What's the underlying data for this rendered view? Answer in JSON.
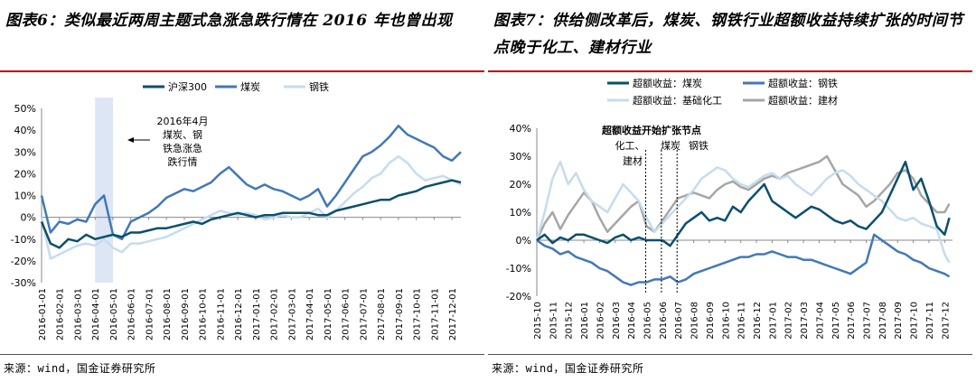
{
  "left": {
    "title": "图表6：类似最近两周主题式急涨急跌行情在 2016 年也曾出现",
    "source": "来源：wind，国金证券研究所",
    "legend": [
      "沪深300",
      "煤炭",
      "钢铁"
    ],
    "annotation_lines": [
      "2016年4月",
      "煤炭、钢",
      "铁急涨急",
      "跌行情"
    ],
    "colors": {
      "hs300": "#0b4f6c",
      "coal": "#4178b8",
      "steel": "#c6dcee",
      "shade": "#dce6f5",
      "title_rule": "#c00000"
    }
  },
  "right": {
    "title": "图表7：供给侧改革后，煤炭、钢铁行业超额收益持续扩张的时间节点晚于化工、建材行业",
    "source": "来源：wind，国金证券研究所",
    "legend": [
      "超额收益：煤炭",
      "超额收益：钢铁",
      "超额收益：基础化工",
      "超额收益：建材"
    ],
    "annotation_title": "超额收益开始扩张节点",
    "annotation_labels": [
      "化工、",
      "建材",
      "煤炭",
      "钢铁"
    ],
    "colors": {
      "coal": "#0b4f6c",
      "steel": "#4178b8",
      "chem": "#c6dcee",
      "build": "#a6a6a6"
    }
  },
  "chart_data": [
    {
      "type": "line",
      "xlabel": "",
      "ylabel": "",
      "ylim": [
        -0.3,
        0.5
      ],
      "yticks": [
        "50%",
        "40%",
        "30%",
        "20%",
        "10%",
        "0%",
        "-10%",
        "-20%",
        "-30%"
      ],
      "x_tick_labels": [
        "2016-01-01",
        "2016-02-01",
        "2016-03-01",
        "2016-04-01",
        "2016-05-01",
        "2016-06-01",
        "2016-07-01",
        "2016-08-01",
        "2016-09-01",
        "2016-10-01",
        "2016-11-01",
        "2016-12-01",
        "2017-01-01",
        "2017-02-01",
        "2017-03-01",
        "2017-04-01",
        "2017-05-01",
        "2017-06-01",
        "2017-07-01",
        "2017-08-01",
        "2017-09-01",
        "2017-10-01",
        "2017-11-01",
        "2017-12-01"
      ],
      "legend_position": "top-center",
      "shaded_region": [
        "2016-04-01",
        "2016-05-01"
      ],
      "series": [
        {
          "name": "沪深300",
          "x": [
            0,
            0.5,
            1,
            1.5,
            2,
            2.5,
            3,
            3.5,
            4,
            4.5,
            5,
            5.5,
            6,
            6.5,
            7,
            7.5,
            8,
            8.5,
            9,
            9.5,
            10,
            10.5,
            11,
            11.5,
            12,
            12.5,
            13,
            13.5,
            14,
            14.5,
            15,
            15.5,
            16,
            16.5,
            17,
            17.5,
            18,
            18.5,
            19,
            19.5,
            20,
            20.5,
            21,
            21.5,
            22,
            22.5,
            23,
            23.5
          ],
          "values": [
            -0.02,
            -0.12,
            -0.14,
            -0.1,
            -0.11,
            -0.08,
            -0.1,
            -0.09,
            -0.08,
            -0.09,
            -0.07,
            -0.07,
            -0.06,
            -0.05,
            -0.05,
            -0.04,
            -0.03,
            -0.02,
            -0.03,
            -0.01,
            0.0,
            0.01,
            0.02,
            0.01,
            0.0,
            0.01,
            0.01,
            0.02,
            0.02,
            0.02,
            0.02,
            0.01,
            0.01,
            0.03,
            0.04,
            0.05,
            0.06,
            0.07,
            0.08,
            0.08,
            0.1,
            0.11,
            0.12,
            0.14,
            0.15,
            0.16,
            0.17,
            0.16
          ]
        },
        {
          "name": "煤炭",
          "x": [
            0,
            0.5,
            1,
            1.5,
            2,
            2.5,
            3,
            3.5,
            4,
            4.5,
            5,
            5.5,
            6,
            6.5,
            7,
            7.5,
            8,
            8.5,
            9,
            9.5,
            10,
            10.5,
            11,
            11.5,
            12,
            12.5,
            13,
            13.5,
            14,
            14.5,
            15,
            15.5,
            16,
            16.5,
            17,
            17.5,
            18,
            18.5,
            19,
            19.5,
            20,
            20.5,
            21,
            21.5,
            22,
            22.5,
            23,
            23.5
          ],
          "values": [
            0.1,
            -0.07,
            -0.02,
            -0.03,
            -0.01,
            -0.02,
            0.06,
            0.1,
            -0.08,
            -0.1,
            -0.02,
            0.0,
            0.02,
            0.05,
            0.09,
            0.11,
            0.13,
            0.12,
            0.14,
            0.16,
            0.2,
            0.23,
            0.19,
            0.15,
            0.13,
            0.15,
            0.13,
            0.12,
            0.1,
            0.08,
            0.1,
            0.13,
            0.05,
            0.1,
            0.16,
            0.22,
            0.28,
            0.3,
            0.33,
            0.37,
            0.42,
            0.38,
            0.36,
            0.34,
            0.32,
            0.28,
            0.26,
            0.3
          ]
        },
        {
          "name": "钢铁",
          "x": [
            0,
            0.5,
            1,
            1.5,
            2,
            2.5,
            3,
            3.5,
            4,
            4.5,
            5,
            5.5,
            6,
            6.5,
            7,
            7.5,
            8,
            8.5,
            9,
            9.5,
            10,
            10.5,
            11,
            11.5,
            12,
            12.5,
            13,
            13.5,
            14,
            14.5,
            15,
            15.5,
            16,
            16.5,
            17,
            17.5,
            18,
            18.5,
            19,
            19.5,
            20,
            20.5,
            21,
            21.5,
            22,
            22.5,
            23,
            23.5
          ],
          "values": [
            0.0,
            -0.19,
            -0.17,
            -0.15,
            -0.13,
            -0.12,
            -0.13,
            -0.1,
            -0.14,
            -0.16,
            -0.12,
            -0.12,
            -0.11,
            -0.1,
            -0.09,
            -0.07,
            -0.05,
            -0.03,
            -0.01,
            0.01,
            0.03,
            0.02,
            0.01,
            0.02,
            0.01,
            -0.01,
            0.0,
            0.01,
            0.0,
            0.0,
            0.02,
            0.04,
            0.0,
            0.03,
            0.07,
            0.11,
            0.14,
            0.18,
            0.2,
            0.25,
            0.28,
            0.25,
            0.2,
            0.17,
            0.18,
            0.19,
            0.17,
            0.15
          ]
        }
      ]
    },
    {
      "type": "line",
      "xlabel": "",
      "ylabel": "",
      "ylim": [
        -0.2,
        0.4
      ],
      "yticks": [
        "40%",
        "30%",
        "20%",
        "10%",
        "0%",
        "-10%",
        "-20%"
      ],
      "x_tick_labels": [
        "2015-10",
        "2015-11",
        "2015-12",
        "2016-01",
        "2016-02",
        "2016-03",
        "2016-04",
        "2016-05",
        "2016-06",
        "2016-07",
        "2016-08",
        "2016-09",
        "2016-10",
        "2016-11",
        "2016-12",
        "2017-01",
        "2017-02",
        "2017-03",
        "2017-04",
        "2017-05",
        "2017-06",
        "2017-07",
        "2017-08",
        "2017-09",
        "2017-10",
        "2017-11",
        "2017-12"
      ],
      "legend_position": "top-center",
      "markers": [
        "2016-05 (化工、建材)",
        "2016-06 (煤炭)",
        "2016-07 (钢铁)"
      ],
      "series": [
        {
          "name": "超额收益：煤炭",
          "x": [
            0,
            0.5,
            1,
            1.5,
            2,
            2.5,
            3,
            3.5,
            4,
            4.5,
            5,
            5.5,
            6,
            6.5,
            7,
            7.5,
            8,
            8.5,
            9,
            9.5,
            10,
            10.5,
            11,
            11.5,
            12,
            12.5,
            13,
            13.5,
            14,
            14.5,
            15,
            15.5,
            16,
            16.5,
            17,
            17.5,
            18,
            18.5,
            19,
            19.5,
            20,
            20.5,
            21,
            21.5,
            22,
            22.5,
            23,
            23.5,
            24,
            24.5,
            25,
            25.5,
            26,
            26.3
          ],
          "values": [
            0.0,
            0.02,
            -0.01,
            0.01,
            0.0,
            0.02,
            0.02,
            0.01,
            0.0,
            -0.01,
            0.01,
            0.02,
            0.0,
            0.01,
            0.0,
            0.0,
            0.0,
            -0.02,
            0.02,
            0.06,
            0.08,
            0.1,
            0.07,
            0.08,
            0.07,
            0.12,
            0.1,
            0.14,
            0.17,
            0.2,
            0.14,
            0.12,
            0.1,
            0.08,
            0.1,
            0.12,
            0.11,
            0.09,
            0.07,
            0.06,
            0.07,
            0.05,
            0.04,
            0.07,
            0.1,
            0.16,
            0.22,
            0.28,
            0.18,
            0.22,
            0.14,
            0.05,
            0.02,
            0.08
          ]
        },
        {
          "name": "超额收益：钢铁",
          "x": [
            0,
            0.5,
            1,
            1.5,
            2,
            2.5,
            3,
            3.5,
            4,
            4.5,
            5,
            5.5,
            6,
            6.5,
            7,
            7.5,
            8,
            8.5,
            9,
            9.5,
            10,
            10.5,
            11,
            11.5,
            12,
            12.5,
            13,
            13.5,
            14,
            14.5,
            15,
            15.5,
            16,
            16.5,
            17,
            17.5,
            18,
            18.5,
            19,
            19.5,
            20,
            20.5,
            21,
            21.5,
            22,
            22.5,
            23,
            23.5,
            24,
            24.5,
            25,
            25.5,
            26,
            26.3
          ],
          "values": [
            0.0,
            -0.02,
            -0.03,
            -0.05,
            -0.04,
            -0.06,
            -0.07,
            -0.08,
            -0.1,
            -0.11,
            -0.13,
            -0.15,
            -0.16,
            -0.15,
            -0.15,
            -0.14,
            -0.14,
            -0.13,
            -0.15,
            -0.14,
            -0.12,
            -0.11,
            -0.1,
            -0.09,
            -0.08,
            -0.07,
            -0.06,
            -0.06,
            -0.05,
            -0.05,
            -0.04,
            -0.05,
            -0.06,
            -0.06,
            -0.07,
            -0.07,
            -0.08,
            -0.09,
            -0.1,
            -0.11,
            -0.12,
            -0.1,
            -0.08,
            0.02,
            0.0,
            -0.02,
            -0.04,
            -0.05,
            -0.07,
            -0.08,
            -0.1,
            -0.11,
            -0.12,
            -0.13
          ]
        },
        {
          "name": "超额收益：基础化工",
          "x": [
            0,
            0.5,
            1,
            1.5,
            2,
            2.5,
            3,
            3.5,
            4,
            4.5,
            5,
            5.5,
            6,
            6.5,
            7,
            7.5,
            8,
            8.5,
            9,
            9.5,
            10,
            10.5,
            11,
            11.5,
            12,
            12.5,
            13,
            13.5,
            14,
            14.5,
            15,
            15.5,
            16,
            16.5,
            17,
            17.5,
            18,
            18.5,
            19,
            19.5,
            20,
            20.5,
            21,
            21.5,
            22,
            22.5,
            23,
            23.5,
            24,
            24.5,
            25,
            25.5,
            26,
            26.3
          ],
          "values": [
            0.0,
            0.1,
            0.22,
            0.28,
            0.2,
            0.24,
            0.18,
            0.14,
            0.12,
            0.1,
            0.15,
            0.2,
            0.17,
            0.14,
            0.08,
            0.03,
            0.06,
            0.09,
            0.12,
            0.15,
            0.18,
            0.22,
            0.24,
            0.26,
            0.25,
            0.22,
            0.2,
            0.19,
            0.21,
            0.23,
            0.24,
            0.22,
            0.23,
            0.2,
            0.18,
            0.16,
            0.19,
            0.22,
            0.24,
            0.25,
            0.23,
            0.2,
            0.18,
            0.16,
            0.14,
            0.11,
            0.08,
            0.07,
            0.08,
            0.06,
            0.05,
            0.04,
            -0.05,
            -0.08
          ]
        },
        {
          "name": "超额收益：建材",
          "x": [
            0,
            0.5,
            1,
            1.5,
            2,
            2.5,
            3,
            3.5,
            4,
            4.5,
            5,
            5.5,
            6,
            6.5,
            7,
            7.5,
            8,
            8.5,
            9,
            9.5,
            10,
            10.5,
            11,
            11.5,
            12,
            12.5,
            13,
            13.5,
            14,
            14.5,
            15,
            15.5,
            16,
            16.5,
            17,
            17.5,
            18,
            18.5,
            19,
            19.5,
            20,
            20.5,
            21,
            21.5,
            22,
            22.5,
            23,
            23.5,
            24,
            24.5,
            25,
            25.5,
            26,
            26.3
          ],
          "values": [
            0.0,
            0.06,
            0.1,
            0.04,
            0.09,
            0.13,
            0.17,
            0.14,
            0.08,
            0.03,
            0.06,
            0.09,
            0.12,
            0.14,
            0.05,
            0.03,
            0.07,
            0.11,
            0.15,
            0.16,
            0.17,
            0.16,
            0.15,
            0.18,
            0.2,
            0.21,
            0.19,
            0.18,
            0.2,
            0.22,
            0.23,
            0.22,
            0.24,
            0.25,
            0.26,
            0.27,
            0.28,
            0.3,
            0.25,
            0.2,
            0.18,
            0.16,
            0.12,
            0.14,
            0.17,
            0.2,
            0.24,
            0.25,
            0.22,
            0.16,
            0.13,
            0.1,
            0.1,
            0.13
          ]
        }
      ]
    }
  ]
}
